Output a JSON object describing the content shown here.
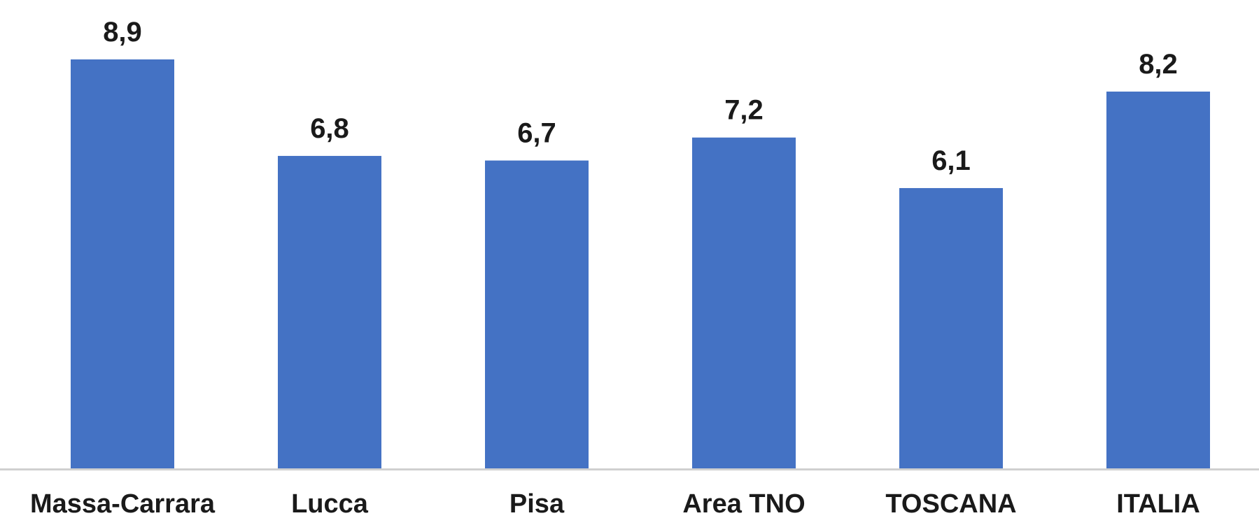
{
  "chart_data": {
    "type": "bar",
    "categories": [
      "Massa-Carrara",
      "Lucca",
      "Pisa",
      "Area TNO",
      "TOSCANA",
      "ITALIA"
    ],
    "values": [
      8.9,
      6.8,
      6.7,
      7.2,
      6.1,
      8.2
    ],
    "data_labels": [
      "8,9",
      "6,8",
      "6,7",
      "7,2",
      "6,1",
      "8,2"
    ],
    "title": "",
    "xlabel": "",
    "ylabel": "",
    "ylim": [
      0,
      8.9
    ],
    "grid": false,
    "legend": "none",
    "colors": {
      "bar": "#4472C4",
      "axis": "#d0d0d0",
      "text": "#1a1a1a"
    }
  }
}
